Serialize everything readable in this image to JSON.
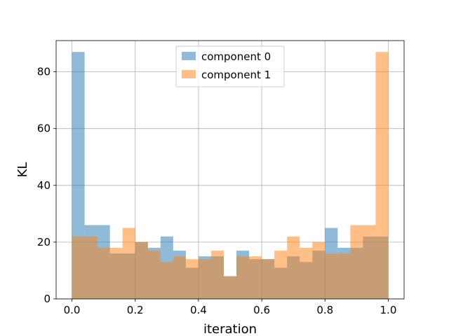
{
  "chart_data": {
    "type": "bar",
    "subtype": "histogram-overlay",
    "title": "",
    "xlabel": "iteration",
    "ylabel": "KL",
    "xlim": [
      -0.05,
      1.05
    ],
    "ylim": [
      0,
      91
    ],
    "x_ticks": [
      "0.0",
      "0.2",
      "0.4",
      "0.6",
      "0.8",
      "1.0"
    ],
    "x_tick_values": [
      0.0,
      0.2,
      0.4,
      0.6,
      0.8,
      1.0
    ],
    "y_ticks": [
      "0",
      "20",
      "40",
      "60",
      "80"
    ],
    "y_tick_values": [
      0,
      20,
      40,
      60,
      80
    ],
    "grid": true,
    "legend_position": "top-center",
    "bin_edges": [
      0.0,
      0.04,
      0.08,
      0.12,
      0.16,
      0.2,
      0.24,
      0.28,
      0.32,
      0.36,
      0.4,
      0.44,
      0.48,
      0.52,
      0.56,
      0.6,
      0.64,
      0.68,
      0.72,
      0.76,
      0.8,
      0.84,
      0.88,
      0.92,
      0.96,
      1.0
    ],
    "series": [
      {
        "name": "component 0",
        "color": "#1f77b4",
        "alpha": 0.5,
        "values": [
          87,
          26,
          26,
          16,
          16,
          20,
          18,
          22,
          17,
          11,
          15,
          15,
          8,
          17,
          14,
          14,
          11,
          15,
          13,
          17,
          25,
          18,
          18,
          22,
          22
        ]
      },
      {
        "name": "component 1",
        "color": "#ff7f0e",
        "alpha": 0.5,
        "values": [
          22,
          22,
          18,
          18,
          25,
          20,
          17,
          13,
          15,
          14,
          14,
          17,
          8,
          15,
          15,
          14,
          17,
          22,
          18,
          20,
          16,
          16,
          26,
          26,
          87
        ]
      }
    ]
  }
}
